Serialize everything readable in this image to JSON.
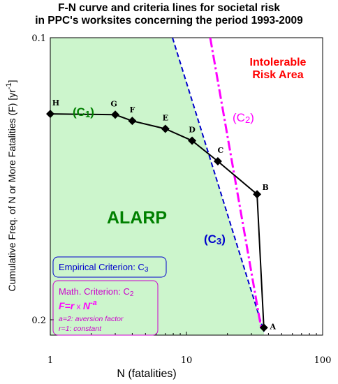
{
  "chart_data": {
    "type": "line",
    "title_lines": [
      "F-N curve and criteria lines for societal risk",
      "in PPC's worksites concerning the period 1993-2009"
    ],
    "xlabel": "N   (fatalities)",
    "ylabel_main": "Cumulative Freq. of N or More Fatalities (F) [yr",
    "ylabel_exp": "-1",
    "ylabel_close": "]",
    "x_scale": "log",
    "xlim": [
      1,
      100
    ],
    "x_ticks": [
      {
        "value": 1,
        "label": "1"
      },
      {
        "value": 10,
        "label": "10"
      },
      {
        "value": 100,
        "label": "100"
      }
    ],
    "y_ticks": [
      {
        "value": 0.1,
        "label": "0.1"
      },
      {
        "value": 0.2,
        "label": "0.2"
      }
    ],
    "series": [
      {
        "type": "line",
        "color": "#000000",
        "points": [
          {
            "label": "H",
            "x": 1.0,
            "y": 0.127
          },
          {
            "label": "G",
            "x": 3.0,
            "y": 0.1273
          },
          {
            "label": "F",
            "x": 4.0,
            "y": 0.1295
          },
          {
            "label": "E",
            "x": 7.0,
            "y": 0.1323
          },
          {
            "label": "D",
            "x": 11.0,
            "y": 0.1365
          },
          {
            "label": "C",
            "x": 17.0,
            "y": 0.1438
          },
          {
            "label": "B",
            "x": 33.0,
            "y": 0.1555
          },
          {
            "label": "A",
            "x": 37.0,
            "y": 0.2028
          }
        ]
      }
    ],
    "criteria": [
      {
        "name": "C1",
        "color": "#008000",
        "label_main": "(C",
        "label_sub": "1",
        "label_close": ")"
      },
      {
        "name": "C2",
        "color": "#ff00ff",
        "label_main": "(C",
        "label_sub": "2",
        "label_close": ")"
      },
      {
        "name": "C3",
        "color": "#0000cc",
        "label_main": "(C",
        "label_sub": "3",
        "label_close": ")"
      }
    ],
    "regions": {
      "alarp": {
        "text": "ALARP",
        "color": "#008000",
        "fill": "#ccf5cc"
      },
      "intolerable": {
        "lines": [
          "Intolerable",
          "Risk Area"
        ],
        "color": "#ff0000"
      }
    },
    "legend_boxes": [
      {
        "name": "empirical",
        "text": "Empirical Criterion: C",
        "sub": "3",
        "color": "#0000cc"
      },
      {
        "name": "math",
        "text": "Math. Criterion: C",
        "sub": "2",
        "formula_parts": [
          "F=r",
          " x ",
          "N",
          "-a"
        ],
        "notes": [
          "a=2: aversion factor",
          "r=1: constant"
        ],
        "color": "#cc00cc"
      }
    ]
  }
}
